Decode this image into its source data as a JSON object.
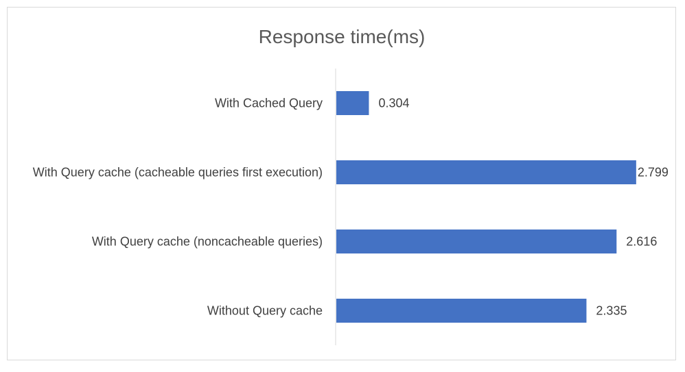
{
  "chart_data": {
    "type": "bar",
    "orientation": "horizontal",
    "title": "Response time(ms)",
    "xlabel": "",
    "ylabel": "",
    "categories": [
      "With Cached Query",
      "With Query cache (cacheable queries first execution)",
      "With Query cache (noncacheable queries)",
      "Without Query cache"
    ],
    "values": [
      0.304,
      2.799,
      2.616,
      2.335
    ],
    "value_labels": [
      "0.304",
      "2.799",
      "2.616",
      "2.335"
    ],
    "xlim": [
      0,
      2.8
    ],
    "grid": false,
    "legend": "none",
    "bar_color": "#4472C4"
  }
}
